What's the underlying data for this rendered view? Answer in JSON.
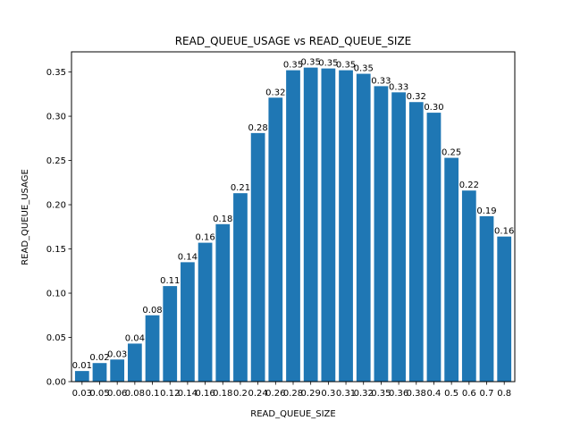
{
  "chart_data": {
    "type": "bar",
    "title": "READ_QUEUE_USAGE vs READ_QUEUE_SIZE",
    "xlabel": "READ_QUEUE_SIZE",
    "ylabel": "READ_QUEUE_USAGE",
    "categories": [
      "0.03",
      "0.05",
      "0.06",
      "0.08",
      "0.1",
      "0.12",
      "0.14",
      "0.16",
      "0.18",
      "0.2",
      "0.24",
      "0.26",
      "0.28",
      "0.29",
      "0.3",
      "0.31",
      "0.32",
      "0.35",
      "0.36",
      "0.38",
      "0.4",
      "0.5",
      "0.6",
      "0.7",
      "0.8"
    ],
    "values": [
      0.012,
      0.021,
      0.025,
      0.043,
      0.075,
      0.108,
      0.135,
      0.157,
      0.178,
      0.213,
      0.281,
      0.321,
      0.352,
      0.355,
      0.354,
      0.352,
      0.348,
      0.334,
      0.327,
      0.316,
      0.304,
      0.253,
      0.216,
      0.187,
      0.164
    ],
    "data_labels": [
      "0.01",
      "0.02",
      "0.03",
      "0.04",
      "0.08",
      "0.11",
      "0.14",
      "0.16",
      "0.18",
      "0.21",
      "0.28",
      "0.32",
      "0.35",
      "0.35",
      "0.35",
      "0.35",
      "0.35",
      "0.33",
      "0.33",
      "0.32",
      "0.30",
      "0.25",
      "0.22",
      "0.19",
      "0.16"
    ],
    "yticks": [
      "0.00",
      "0.05",
      "0.10",
      "0.15",
      "0.20",
      "0.25",
      "0.30",
      "0.35"
    ],
    "ylim": [
      0,
      0.3728
    ],
    "grid": false,
    "bar_color": "#1f77b4"
  }
}
